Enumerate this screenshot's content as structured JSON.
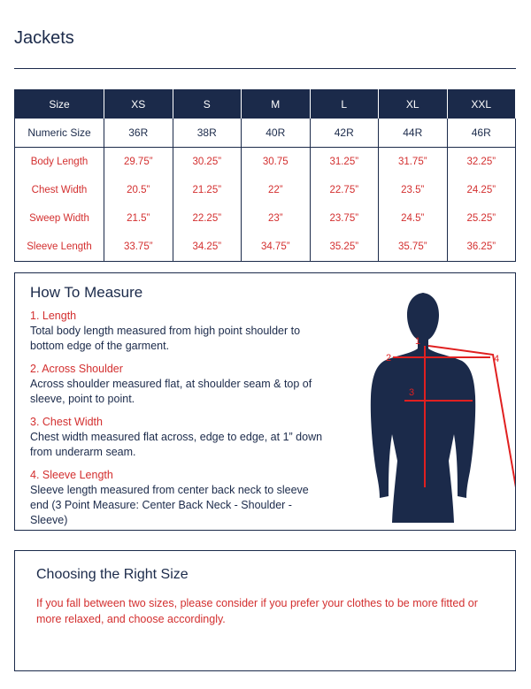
{
  "title": "Jackets",
  "table": {
    "header": [
      "Size",
      "XS",
      "S",
      "M",
      "L",
      "XL",
      "XXL"
    ],
    "rows": [
      [
        "Numeric Size",
        "36R",
        "38R",
        "40R",
        "42R",
        "44R",
        "46R"
      ],
      [
        "Body Length",
        "29.75”",
        "30.25”",
        "30.75",
        "31.25”",
        "31.75”",
        "32.25”"
      ],
      [
        "Chest Width",
        "20.5”",
        "21.25”",
        "22”",
        "22.75”",
        "23.5”",
        "24.25”"
      ],
      [
        "Sweep Width",
        "21.5”",
        "22.25”",
        "23”",
        "23.75”",
        "24.5”",
        "25.25”"
      ],
      [
        "Sleeve Length",
        "33.75”",
        "34.25”",
        "34.75”",
        "35.25”",
        "35.75”",
        "36.25”"
      ]
    ]
  },
  "how_to_measure": {
    "title": "How To Measure",
    "items": [
      {
        "heading": "1. Length",
        "text": "Total body length measured from high point shoulder to bottom edge of the garment."
      },
      {
        "heading": "2. Across Shoulder",
        "text": "Across shoulder measured flat, at shoulder seam & top of sleeve, point to point."
      },
      {
        "heading": "3. Chest Width",
        "text": "Chest width measured flat across, edge to edge, at 1” down from underarm seam."
      },
      {
        "heading": "4. Sleeve Length",
        "text": "Sleeve length measured from center back neck to sleeve end (3 Point Measure: Center Back Neck - Shoulder - Sleeve)"
      }
    ],
    "figure_labels": [
      "1",
      "2",
      "3",
      "4"
    ]
  },
  "choosing": {
    "title": "Choosing the Right Size",
    "text": "If you fall between two sizes, please consider if you prefer your clothes to be more fitted or more relaxed, and choose accordingly."
  }
}
